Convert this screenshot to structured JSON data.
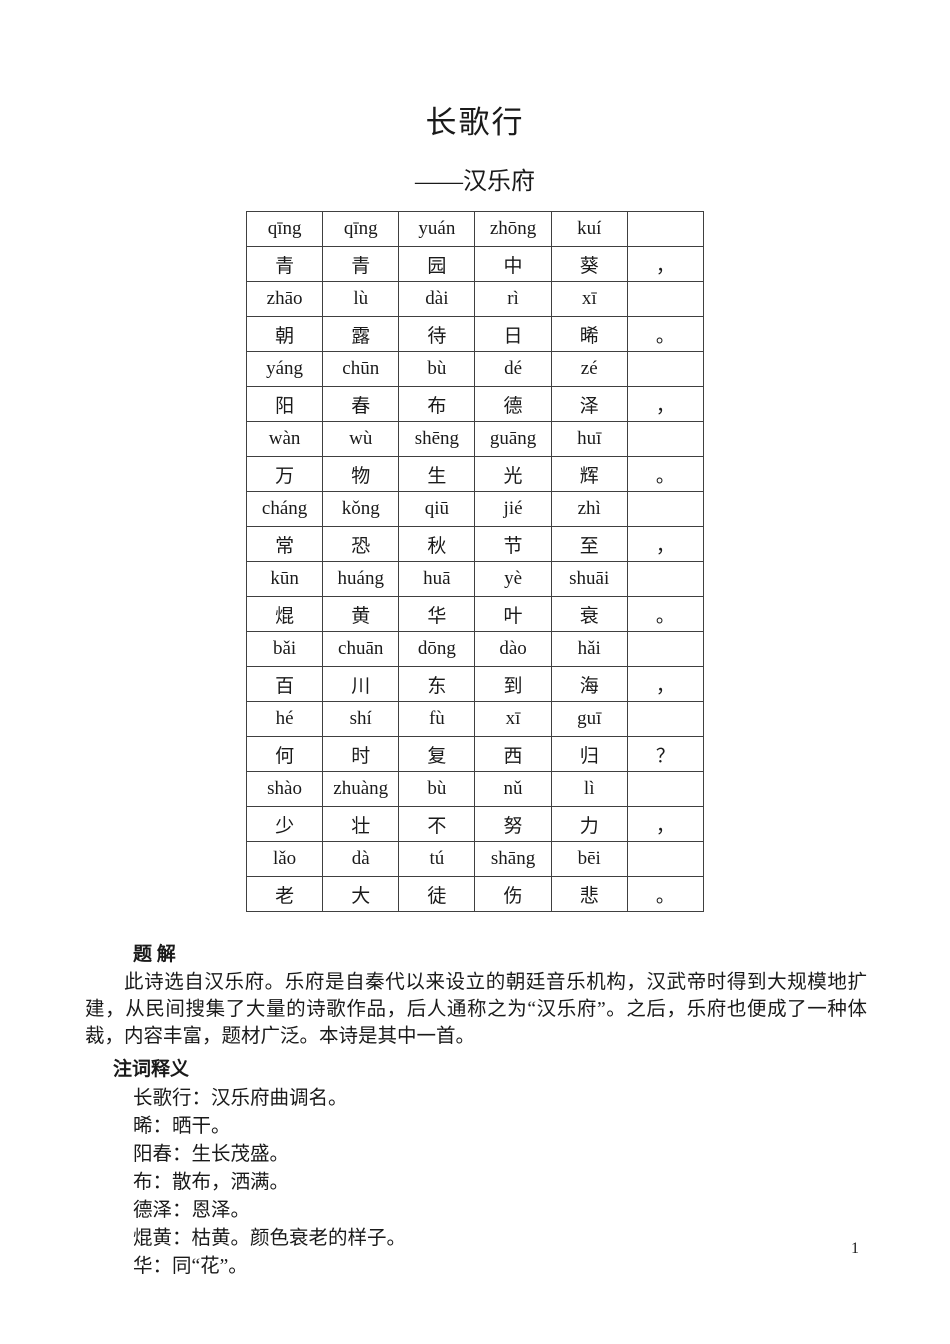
{
  "title": "长歌行",
  "subtitle": "——汉乐府",
  "poem_table": {
    "rows": [
      {
        "type": "pinyin",
        "cells": [
          "qīng",
          "qīng",
          "yuán",
          "zhōng",
          "kuí",
          ""
        ]
      },
      {
        "type": "hanzi",
        "cells": [
          "青",
          "青",
          "园",
          "中",
          "葵",
          "，"
        ]
      },
      {
        "type": "pinyin",
        "cells": [
          "zhāo",
          "lù",
          "dài",
          "rì",
          "xī",
          ""
        ]
      },
      {
        "type": "hanzi",
        "cells": [
          "朝",
          "露",
          "待",
          "日",
          "晞",
          "。"
        ]
      },
      {
        "type": "pinyin",
        "cells": [
          "yáng",
          "chūn",
          "bù",
          "dé",
          "zé",
          ""
        ]
      },
      {
        "type": "hanzi",
        "cells": [
          "阳",
          "春",
          "布",
          "德",
          "泽",
          "，"
        ]
      },
      {
        "type": "pinyin",
        "cells": [
          "wàn",
          "wù",
          "shēng",
          "guāng",
          "huī",
          ""
        ]
      },
      {
        "type": "hanzi",
        "cells": [
          "万",
          "物",
          "生",
          "光",
          "辉",
          "。"
        ]
      },
      {
        "type": "pinyin",
        "cells": [
          "cháng",
          "kǒng",
          "qiū",
          "jié",
          "zhì",
          ""
        ]
      },
      {
        "type": "hanzi",
        "cells": [
          "常",
          "恐",
          "秋",
          "节",
          "至",
          "，"
        ]
      },
      {
        "type": "pinyin",
        "cells": [
          "kūn",
          "huáng",
          "huā",
          "yè",
          "shuāi",
          ""
        ]
      },
      {
        "type": "hanzi",
        "cells": [
          "焜",
          "黄",
          "华",
          "叶",
          "衰",
          "。"
        ]
      },
      {
        "type": "pinyin",
        "cells": [
          "bǎi",
          "chuān",
          "dōng",
          "dào",
          "hǎi",
          ""
        ]
      },
      {
        "type": "hanzi",
        "cells": [
          "百",
          "川",
          "东",
          "到",
          "海",
          "，"
        ]
      },
      {
        "type": "pinyin",
        "cells": [
          "hé",
          "shí",
          "fù",
          "xī",
          "guī",
          ""
        ]
      },
      {
        "type": "hanzi",
        "cells": [
          "何",
          "时",
          "复",
          "西",
          "归",
          "？"
        ]
      },
      {
        "type": "pinyin",
        "cells": [
          "shào",
          "zhuàng",
          "bù",
          "nǔ",
          "lì",
          ""
        ]
      },
      {
        "type": "hanzi",
        "cells": [
          "少",
          "壮",
          "不",
          "努",
          "力",
          "，"
        ]
      },
      {
        "type": "pinyin",
        "cells": [
          "lǎo",
          "dà",
          "tú",
          "shāng",
          "bēi",
          ""
        ]
      },
      {
        "type": "hanzi",
        "cells": [
          "老",
          "大",
          "徒",
          "伤",
          "悲",
          "。"
        ]
      }
    ]
  },
  "jieti": {
    "heading": "题 解",
    "paragraph": "此诗选自汉乐府。乐府是自秦代以来设立的朝廷音乐机构，汉武帝时得到大规模地扩建，从民间搜集了大量的诗歌作品，后人通称之为“汉乐府”。之后，乐府也便成了一种体裁，内容丰富，题材广泛。本诗是其中一首。"
  },
  "notes": {
    "heading": "注词释义",
    "definitions": [
      "长歌行：汉乐府曲调名。",
      "晞：晒干。",
      "阳春：生长茂盛。",
      "布：散布，洒满。",
      "德泽：恩泽。",
      "焜黄：枯黄。颜色衰老的样子。",
      "华：同“花”。"
    ]
  },
  "page_number": "1"
}
